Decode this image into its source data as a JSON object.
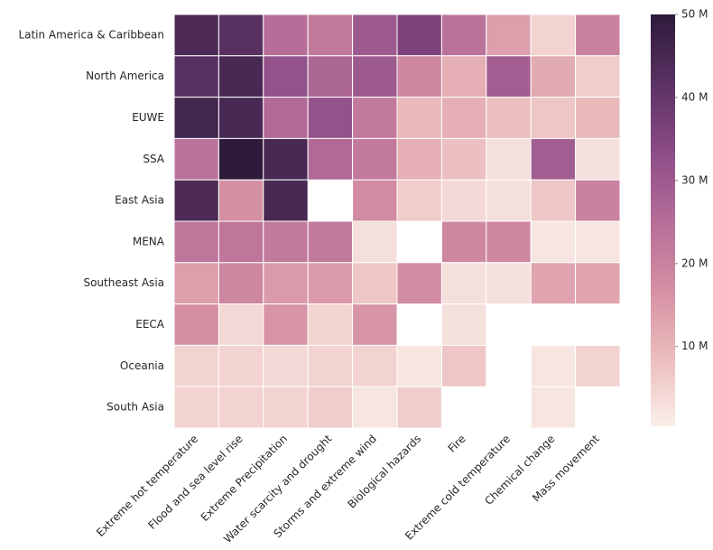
{
  "chart_data": {
    "type": "heatmap",
    "x": [
      "Extreme hot temperature",
      "Flood and sea level rise",
      "Extreme Precipitation",
      "Water scarcity and drought",
      "Storms and extreme wind",
      "Biological hazards",
      "Fire",
      "Extreme cold temperature",
      "Chemical change",
      "Mass movement"
    ],
    "y": [
      "Latin America & Caribbean",
      "North America",
      "EUWE",
      "SSA",
      "East Asia",
      "MENA",
      "Southeast Asia",
      "EECA",
      "Oceania",
      "South Asia"
    ],
    "z": [
      [
        44000000,
        42000000,
        25000000,
        22000000,
        30000000,
        36000000,
        24000000,
        14000000,
        5000000,
        20000000
      ],
      [
        42000000,
        45000000,
        32000000,
        27000000,
        30000000,
        19000000,
        11000000,
        29000000,
        12000000,
        6000000
      ],
      [
        46000000,
        45000000,
        26000000,
        32000000,
        22000000,
        9000000,
        11000000,
        8000000,
        7000000,
        9000000
      ],
      [
        24000000,
        50000000,
        45000000,
        26000000,
        22000000,
        11000000,
        8000000,
        3000000,
        29000000,
        3000000
      ],
      [
        44000000,
        17000000,
        45000000,
        null,
        18000000,
        6000000,
        4000000,
        3000000,
        7000000,
        20000000
      ],
      [
        23000000,
        23000000,
        22000000,
        22000000,
        3000000,
        null,
        19000000,
        19000000,
        2000000,
        2000000
      ],
      [
        14000000,
        19000000,
        15000000,
        15000000,
        7000000,
        18000000,
        3000000,
        3000000,
        13000000,
        13000000
      ],
      [
        17000000,
        4000000,
        16000000,
        5000000,
        16000000,
        null,
        3000000,
        null,
        null,
        null
      ],
      [
        5000000,
        5000000,
        4000000,
        5000000,
        5000000,
        2000000,
        7000000,
        null,
        2000000,
        5000000
      ],
      [
        5000000,
        5000000,
        5000000,
        6000000,
        2000000,
        6000000,
        null,
        null,
        2000000,
        null
      ]
    ],
    "zlim": [
      400000,
      50000000
    ],
    "zticks": [
      {
        "value": 10000000,
        "label": "10 M"
      },
      {
        "value": 20000000,
        "label": "20 M"
      },
      {
        "value": 30000000,
        "label": "30 M"
      },
      {
        "value": 40000000,
        "label": "40 M"
      },
      {
        "value": 50000000,
        "label": "50 M"
      }
    ],
    "colorscale": [
      "#faefea",
      "#ebbcbc",
      "#d58f a3",
      "#b56d98",
      "#8c4c86",
      "#5a3262",
      "#2d1a3b"
    ]
  }
}
